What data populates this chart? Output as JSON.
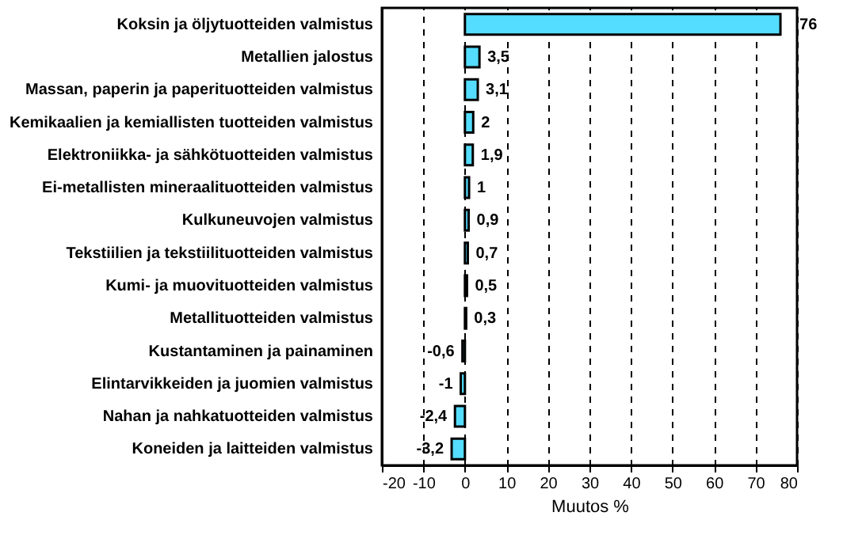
{
  "chart_data": {
    "type": "bar",
    "orientation": "horizontal",
    "xlabel": "Muutos %",
    "categories": [
      "Koksin ja öljytuotteiden valmistus",
      "Metallien jalostus",
      "Massan, paperin ja paperituotteiden valmistus",
      "Kemikaalien ja kemiallisten tuotteiden valmistus",
      "Elektroniikka- ja sähkötuotteiden valmistus",
      "Ei-metallisten mineraalituotteiden valmistus",
      "Kulkuneuvojen valmistus",
      "Tekstiilien ja tekstiilituotteiden valmistus",
      "Kumi- ja muovituotteiden valmistus",
      "Metallituotteiden valmistus",
      "Kustantaminen ja painaminen",
      "Elintarvikkeiden ja juomien valmistus",
      "Nahan ja nahkatuotteiden valmistus",
      "Koneiden ja laitteiden valmistus"
    ],
    "values": [
      76,
      3.5,
      3.1,
      2,
      1.9,
      1,
      0.9,
      0.7,
      0.5,
      0.3,
      -0.6,
      -1,
      -2.4,
      -3.2
    ],
    "value_labels": [
      "76",
      "3,5",
      "3,1",
      "2",
      "1,9",
      "1",
      "0,9",
      "0,7",
      "0,5",
      "0,3",
      "-0,6",
      "-1",
      "-2,4",
      "-3,2"
    ],
    "color": "#55ddff",
    "xlim": [
      -20,
      80
    ],
    "xticks": [
      -20,
      -10,
      0,
      10,
      20,
      30,
      40,
      50,
      60,
      70,
      80
    ],
    "grid": "x"
  }
}
